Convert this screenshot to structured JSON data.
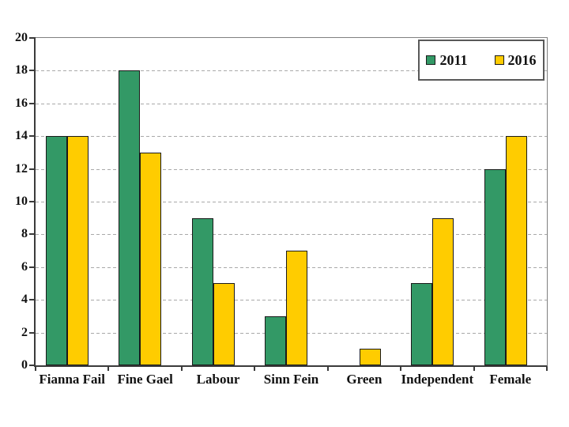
{
  "chart_data": {
    "type": "bar",
    "title": "",
    "xlabel": "",
    "ylabel": "",
    "categories": [
      "Fianna Fail",
      "Fine Gael",
      "Labour",
      "Sinn Fein",
      "Green",
      "Independent",
      "Female"
    ],
    "series": [
      {
        "name": "2011",
        "color": "#339966",
        "values": [
          14,
          18,
          9,
          3,
          0,
          5,
          12
        ]
      },
      {
        "name": "2016",
        "color": "#FFCC00",
        "values": [
          14,
          13,
          5,
          7,
          1,
          9,
          14
        ]
      }
    ],
    "ylim": [
      0,
      20
    ],
    "yticks": [
      0,
      2,
      4,
      6,
      8,
      10,
      12,
      14,
      16,
      18,
      20
    ],
    "grid": "horizontal-dashed",
    "legend_position": "top-right",
    "background": "#ffffff"
  }
}
